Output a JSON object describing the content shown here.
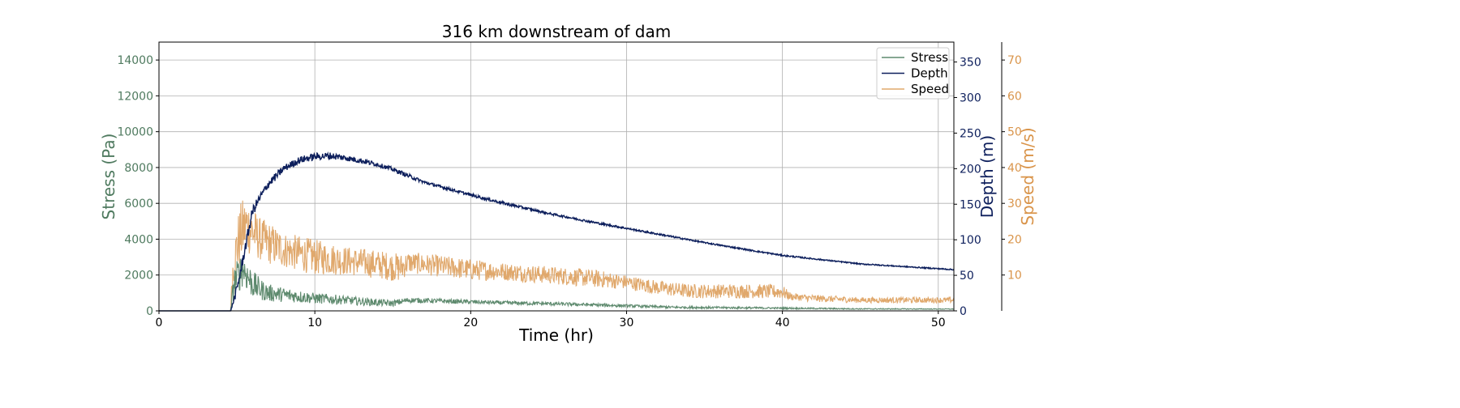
{
  "chart_data": {
    "type": "line",
    "title": "316 km downstream of dam",
    "xlabel": "Time (hr)",
    "xlim": [
      0,
      51
    ],
    "x_ticks": [
      "0",
      "10",
      "20",
      "30",
      "40",
      "50"
    ],
    "grid": true,
    "legend_position": "top-right",
    "axes": {
      "stress": {
        "label": "Stress (Pa)",
        "ylim": [
          0,
          15000
        ],
        "ticks": [
          "0",
          "2000",
          "4000",
          "6000",
          "8000",
          "10000",
          "12000",
          "14000"
        ],
        "color": "#4f7a5f"
      },
      "depth": {
        "label": "Depth (m)",
        "ylim": [
          0,
          378
        ],
        "ticks": [
          "0",
          "50",
          "100",
          "150",
          "200",
          "250",
          "300",
          "350"
        ],
        "color": "#0d1f5c"
      },
      "speed": {
        "label": "Speed (m/s)",
        "ylim": [
          0,
          75
        ],
        "ticks": [
          "10",
          "20",
          "30",
          "40",
          "50",
          "60",
          "70"
        ],
        "color": "#d9944a"
      }
    },
    "series": [
      {
        "name": "Stress",
        "axis": "stress",
        "color": "#5e8a6e",
        "x": [
          0,
          4.6,
          4.8,
          5.1,
          5.4,
          5.7,
          6.0,
          6.5,
          7.0,
          8.0,
          9.0,
          10.0,
          11.0,
          12.0,
          13.0,
          14.0,
          15.0,
          16.0,
          18.0,
          20.0,
          22.0,
          25.0,
          28.0,
          30.0,
          33.0,
          36.0,
          40.0,
          45.0,
          51.0
        ],
        "values": [
          0,
          0,
          1500,
          2000,
          2400,
          1900,
          1500,
          1200,
          1000,
          900,
          800,
          700,
          650,
          600,
          520,
          470,
          420,
          600,
          550,
          500,
          450,
          400,
          330,
          280,
          200,
          180,
          150,
          110,
          100
        ],
        "noise": [
          0,
          0,
          900,
          1000,
          1000,
          900,
          800,
          600,
          500,
          400,
          350,
          300,
          280,
          250,
          220,
          200,
          180,
          150,
          130,
          120,
          110,
          100,
          90,
          80,
          70,
          60,
          50,
          30,
          20
        ]
      },
      {
        "name": "Depth",
        "axis": "depth",
        "color": "#0d1f5c",
        "x": [
          0,
          4.6,
          5.0,
          5.5,
          6.0,
          6.5,
          7.0,
          8.0,
          9.0,
          10.0,
          11.0,
          12.0,
          13.0,
          14.0,
          15.0,
          16.0,
          17.0,
          18.0,
          20.0,
          22.0,
          25.0,
          28.0,
          30.0,
          33.0,
          35.0,
          38.0,
          40.0,
          45.0,
          51.0
        ],
        "values": [
          0,
          0,
          30,
          85,
          140,
          160,
          178,
          200,
          212,
          217,
          218,
          215,
          211,
          206,
          199,
          190,
          181,
          175,
          163,
          152,
          137,
          124,
          116,
          104,
          96,
          85,
          78,
          66,
          58
        ],
        "noise": [
          0,
          0,
          8,
          8,
          8,
          6,
          6,
          5,
          5,
          5,
          5,
          4,
          4,
          3,
          3,
          3,
          2,
          2,
          2,
          2,
          1.5,
          1.5,
          1.2,
          1.2,
          1,
          1,
          1,
          0.8,
          0.8
        ]
      },
      {
        "name": "Speed",
        "axis": "speed",
        "color": "#e0a86c",
        "x": [
          0,
          4.6,
          4.7,
          5.0,
          5.3,
          5.6,
          6.0,
          6.5,
          7.0,
          8.0,
          9.0,
          10.0,
          12.0,
          14.0,
          15.5,
          16.0,
          18.0,
          20.0,
          22.0,
          25.0,
          28.0,
          30.0,
          32.0,
          34.0,
          36.0,
          38.0,
          40.0,
          40.5,
          42.0,
          45.0,
          51.0
        ],
        "values": [
          0,
          0,
          10,
          18,
          22,
          24,
          22,
          20,
          19,
          17,
          16,
          15,
          14,
          13,
          12,
          13.5,
          12.5,
          11.5,
          11,
          10,
          9,
          8,
          6.5,
          5.5,
          5.5,
          5.5,
          5.3,
          4,
          3.5,
          3,
          3
        ],
        "noise": [
          0,
          0,
          4,
          8,
          9,
          8,
          7,
          6,
          6,
          5,
          5,
          5,
          4,
          4,
          4,
          3,
          3,
          3,
          2.5,
          2.5,
          2.5,
          2,
          2,
          2,
          2,
          2,
          2,
          1,
          1,
          0.8,
          0.8
        ]
      }
    ]
  }
}
